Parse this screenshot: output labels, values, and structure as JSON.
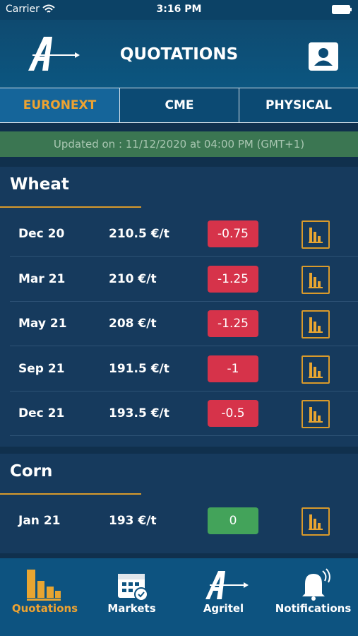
{
  "status_bar": {
    "carrier": "Carrier",
    "time": "3:16 PM"
  },
  "header": {
    "title": "QUOTATIONS"
  },
  "tabs": [
    {
      "label": "EURONEXT",
      "active": true
    },
    {
      "label": "CME",
      "active": false
    },
    {
      "label": "PHYSICAL",
      "active": false
    }
  ],
  "updated": "Updated on : 11/12/2020 at 04:00 PM (GMT+1)",
  "sections": [
    {
      "title": "Wheat",
      "rows": [
        {
          "month": "Dec 20",
          "price": "210.5 €/t",
          "change": "-0.75"
        },
        {
          "month": "Mar 21",
          "price": "210 €/t",
          "change": "-1.25"
        },
        {
          "month": "May 21",
          "price": "208 €/t",
          "change": "-1.25"
        },
        {
          "month": "Sep 21",
          "price": "191.5 €/t",
          "change": "-1"
        },
        {
          "month": "Dec 21",
          "price": "193.5 €/t",
          "change": "-0.5"
        }
      ]
    },
    {
      "title": "Corn",
      "rows": [
        {
          "month": "Jan 21",
          "price": "193 €/t",
          "change": "0"
        }
      ]
    }
  ],
  "nav": [
    {
      "label": "Quotations",
      "active": true
    },
    {
      "label": "Markets",
      "active": false
    },
    {
      "label": "Agritel",
      "active": false
    },
    {
      "label": "Notifications",
      "active": false
    }
  ]
}
